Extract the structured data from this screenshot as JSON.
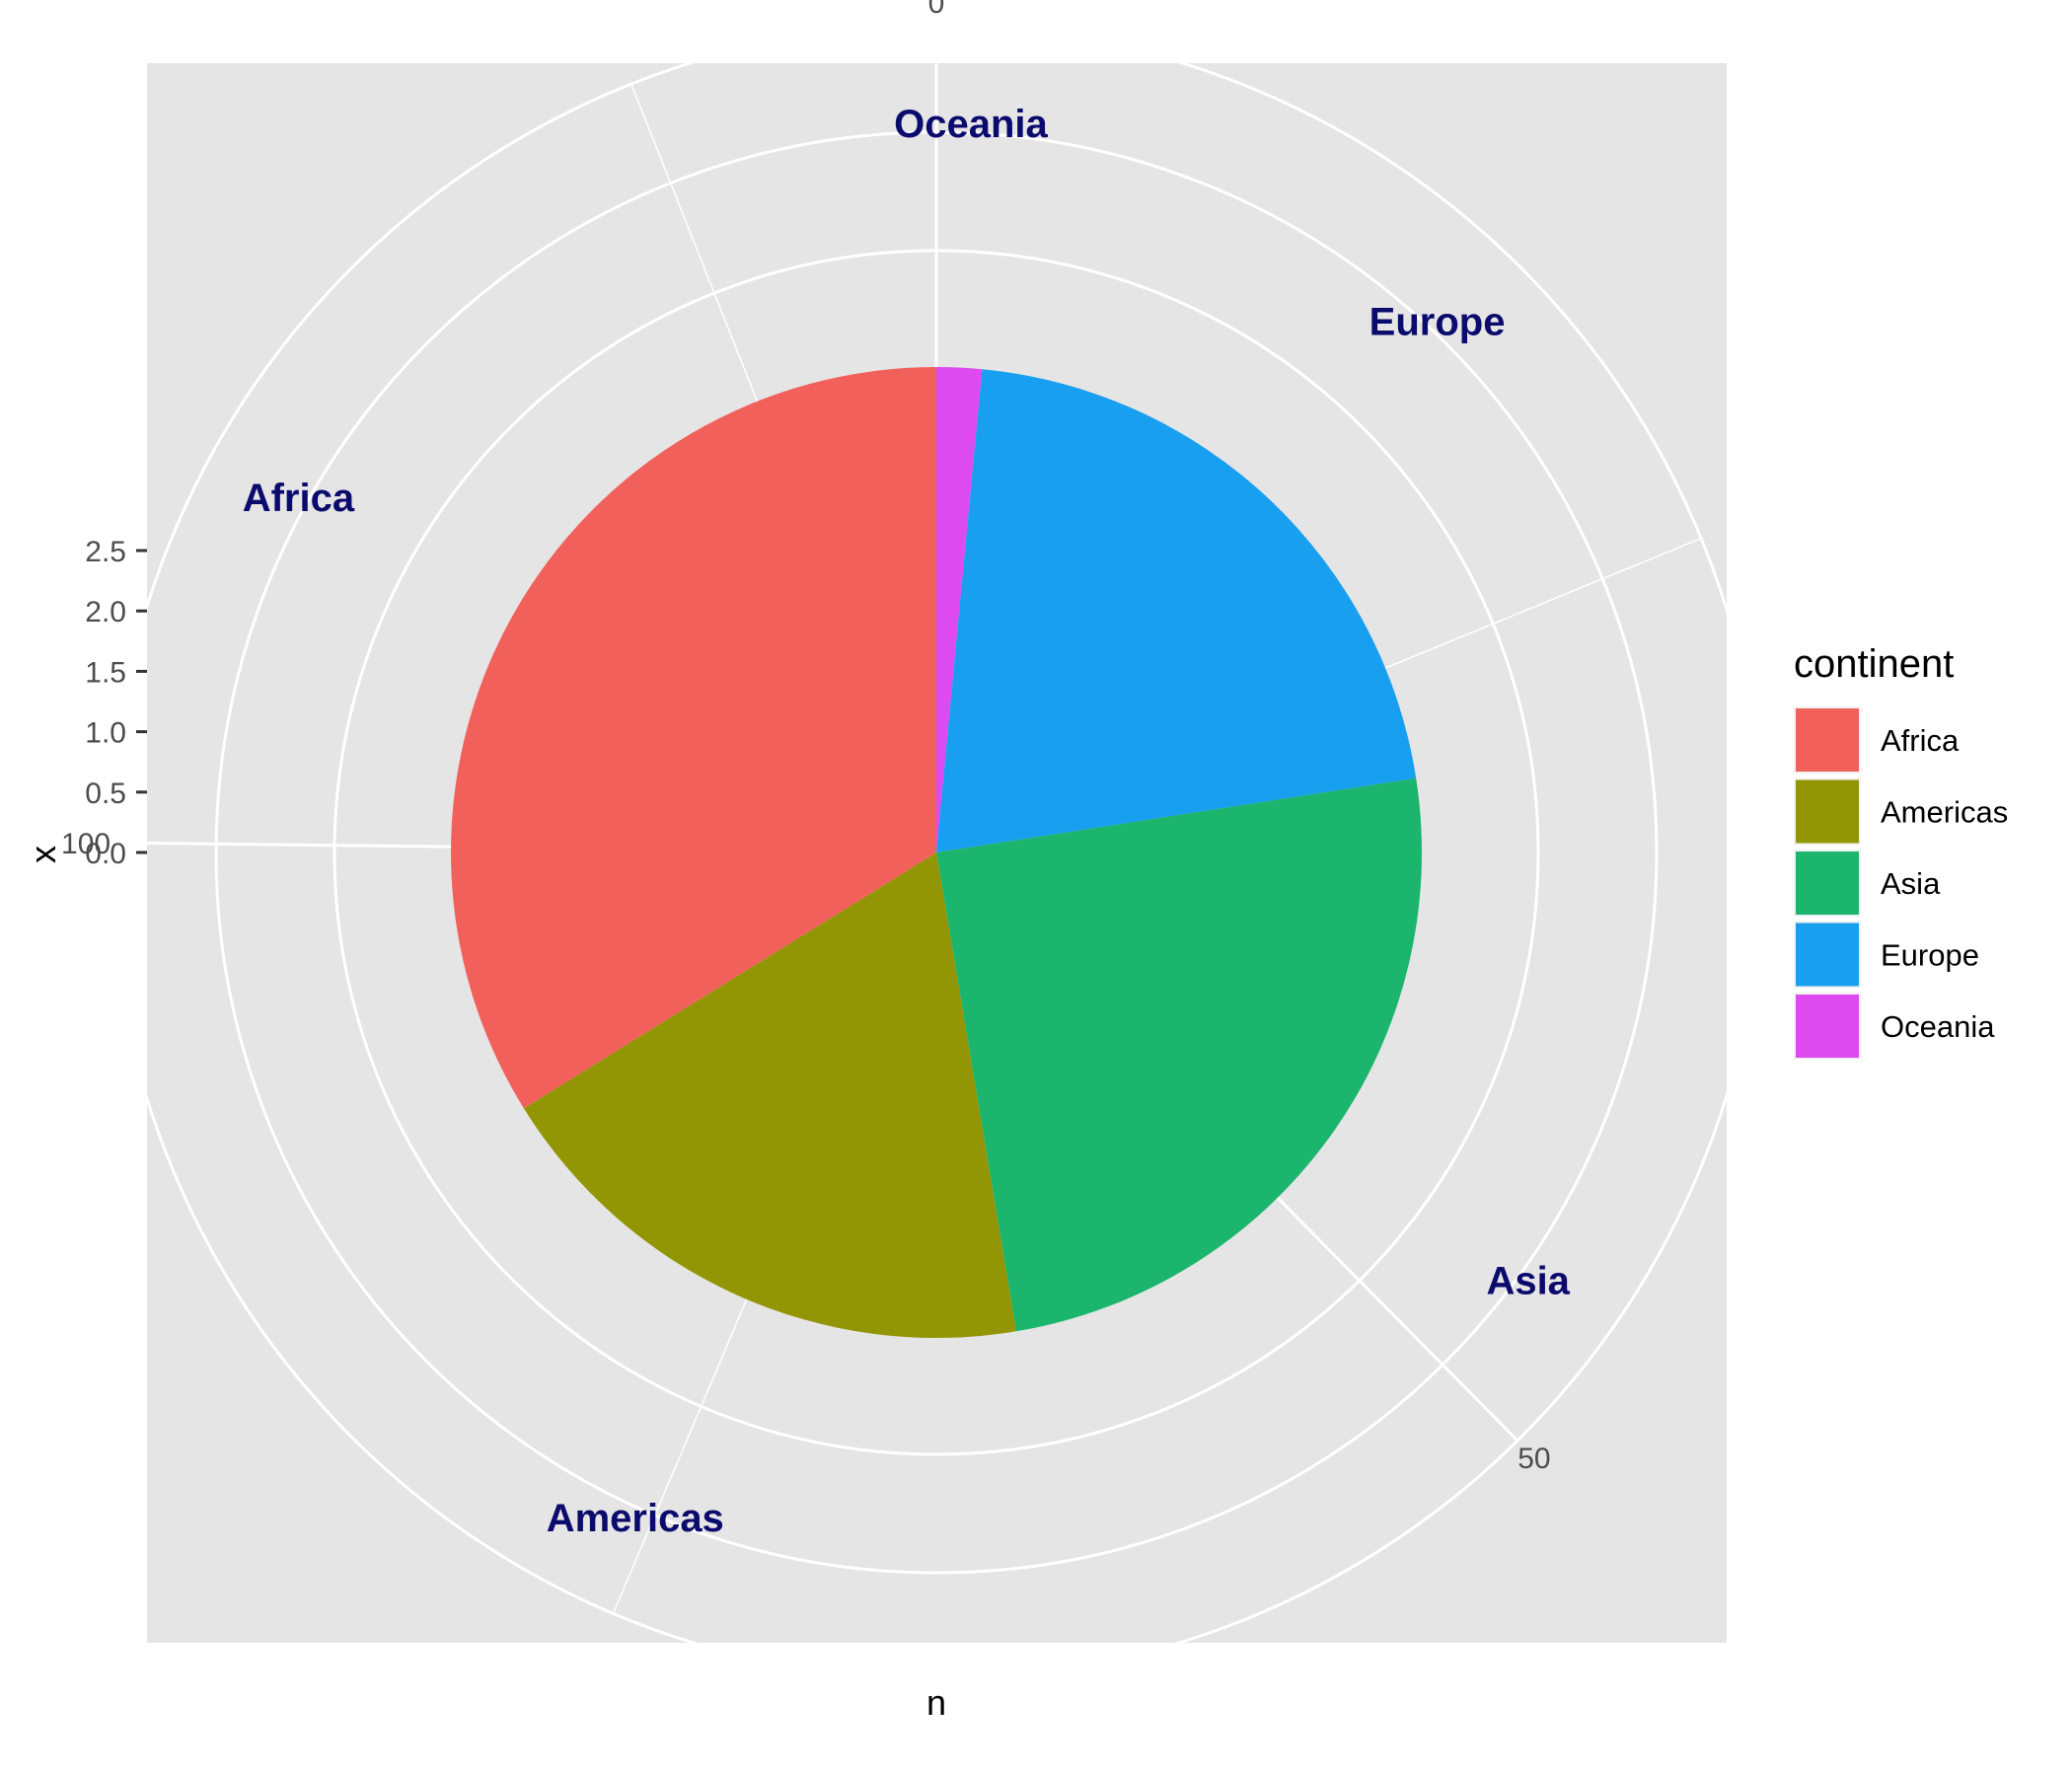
{
  "chart_data": {
    "type": "pie",
    "coord": "polar",
    "xlabel": "n",
    "ylabel": "x",
    "theta_scale": [
      0,
      133
    ],
    "theta_ticks": [
      0,
      50,
      100
    ],
    "theta_tick_labels": [
      "0",
      "50",
      "100"
    ],
    "radial_ticks": [
      0.0,
      0.5,
      1.0,
      1.5,
      2.0,
      2.5
    ],
    "radial_tick_labels": [
      "0.0",
      "0.5",
      "1.0",
      "1.5",
      "2.0",
      "2.5"
    ],
    "radial_gridlines": [
      1.5,
      2.0,
      2.5
    ],
    "grid": true,
    "slices": [
      {
        "name": "Oceania",
        "value": 2,
        "color": "#E76BF3",
        "fill": "#DD4AEF"
      },
      {
        "name": "Europe",
        "value": 28,
        "color": "#00A5FF",
        "fill": "#189FF0"
      },
      {
        "name": "Asia",
        "value": 33,
        "color": "#00BF7D",
        "fill": "#1BB56D"
      },
      {
        "name": "Americas",
        "value": 25,
        "color": "#A3A500",
        "fill": "#939604"
      },
      {
        "name": "Africa",
        "value": 45,
        "color": "#F8766D",
        "fill": "#F2605C"
      }
    ],
    "slice_label_color": "#0b0b6e",
    "legend": {
      "title": "continent",
      "position": "right",
      "entries": [
        "Africa",
        "Americas",
        "Asia",
        "Europe",
        "Oceania"
      ]
    },
    "panel_background": "#E5E5E5",
    "grid_color": "#FFFFFF"
  }
}
